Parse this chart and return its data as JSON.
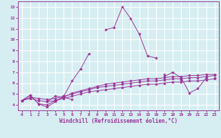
{
  "xlabel": "Windchill (Refroidissement éolien,°C)",
  "bg_color": "#d6eef2",
  "line_color": "#993399",
  "grid_color": "#ffffff",
  "xlim": [
    -0.5,
    23.5
  ],
  "ylim": [
    3.5,
    13.5
  ],
  "xticks": [
    0,
    1,
    2,
    3,
    4,
    5,
    6,
    7,
    8,
    9,
    10,
    11,
    12,
    13,
    14,
    15,
    16,
    17,
    18,
    19,
    20,
    21,
    22,
    23
  ],
  "yticks": [
    4,
    5,
    6,
    7,
    8,
    9,
    10,
    11,
    12,
    13
  ],
  "series": [
    [
      4.4,
      4.9,
      4.1,
      3.8,
      4.3,
      4.8,
      6.2,
      7.3,
      8.7,
      null,
      10.9,
      11.1,
      13.0,
      11.9,
      10.5,
      8.5,
      8.3,
      null,
      null,
      null,
      null,
      null,
      null,
      null
    ],
    [
      4.4,
      null,
      null,
      4.3,
      4.8,
      4.7,
      4.5,
      null,
      null,
      null,
      null,
      null,
      null,
      null,
      null,
      null,
      null,
      null,
      null,
      null,
      null,
      null,
      null,
      null
    ],
    [
      4.4,
      null,
      null,
      null,
      null,
      null,
      null,
      null,
      null,
      null,
      null,
      null,
      null,
      null,
      null,
      null,
      null,
      6.6,
      7.0,
      6.5,
      5.1,
      5.5,
      6.5,
      null
    ],
    [
      4.4,
      null,
      null,
      null,
      null,
      null,
      null,
      null,
      null,
      null,
      null,
      null,
      null,
      null,
      null,
      null,
      null,
      6.8,
      null,
      6.3,
      null,
      null,
      null,
      6.5
    ],
    [
      4.4,
      4.9,
      4.1,
      4.0,
      4.4,
      4.7,
      5.1,
      5.3,
      5.5,
      5.7,
      5.9,
      6.0,
      6.1,
      6.2,
      6.3,
      6.4,
      6.4,
      6.5,
      6.6,
      6.6,
      6.7,
      6.7,
      6.8,
      6.8
    ],
    [
      4.4,
      4.7,
      4.6,
      4.5,
      4.6,
      4.8,
      5.0,
      5.2,
      5.4,
      5.6,
      5.7,
      5.8,
      5.9,
      6.0,
      6.1,
      6.2,
      6.2,
      6.3,
      6.4,
      6.4,
      6.5,
      6.5,
      6.6,
      6.7
    ],
    [
      4.4,
      4.6,
      4.4,
      4.3,
      4.4,
      4.6,
      4.8,
      5.0,
      5.2,
      5.3,
      5.4,
      5.5,
      5.6,
      5.7,
      5.8,
      5.9,
      5.9,
      6.0,
      6.1,
      6.1,
      6.2,
      6.2,
      6.3,
      6.4
    ]
  ],
  "marker": "*",
  "markersize": 3,
  "linewidth": 0.7,
  "tick_fontsize": 4.5,
  "xlabel_fontsize": 5.5
}
